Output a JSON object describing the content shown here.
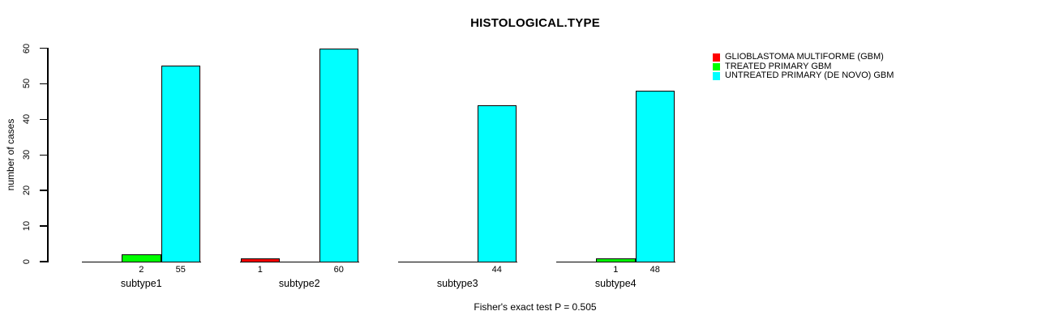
{
  "chart_data": {
    "type": "bar",
    "title": "HISTOLOGICAL.TYPE",
    "ylabel": "number of cases",
    "xlabel": "",
    "ylim": [
      0,
      60
    ],
    "yticks": [
      0,
      10,
      20,
      30,
      40,
      50,
      60
    ],
    "grid": false,
    "grouped_beside": true,
    "categories": [
      "subtype1",
      "subtype2",
      "subtype3",
      "subtype4"
    ],
    "series": [
      {
        "name": "GLIOBLASTOMA MULTIFORME (GBM)",
        "color": "#ff0000",
        "values": [
          0,
          1,
          0,
          0
        ]
      },
      {
        "name": "TREATED PRIMARY GBM",
        "color": "#00ff00",
        "values": [
          2,
          0,
          0,
          1
        ]
      },
      {
        "name": "UNTREATED PRIMARY (DE NOVO) GBM",
        "color": "#00ffff",
        "values": [
          55,
          60,
          44,
          48
        ]
      }
    ],
    "value_labels_shown_when_nonzero": true,
    "visible_value_labels": {
      "subtype1": [
        2,
        55
      ],
      "subtype2": [
        1,
        60
      ],
      "subtype3": [
        44
      ],
      "subtype4": [
        1,
        48
      ]
    },
    "legend": {
      "position": "top-right",
      "entries": [
        "GLIOBLASTOMA MULTIFORME (GBM)",
        "TREATED PRIMARY GBM",
        "UNTREATED PRIMARY (DE NOVO) GBM"
      ]
    },
    "caption": "Fisher's exact test P = 0.505",
    "axis_color": "#000000",
    "background_color": "#ffffff"
  }
}
